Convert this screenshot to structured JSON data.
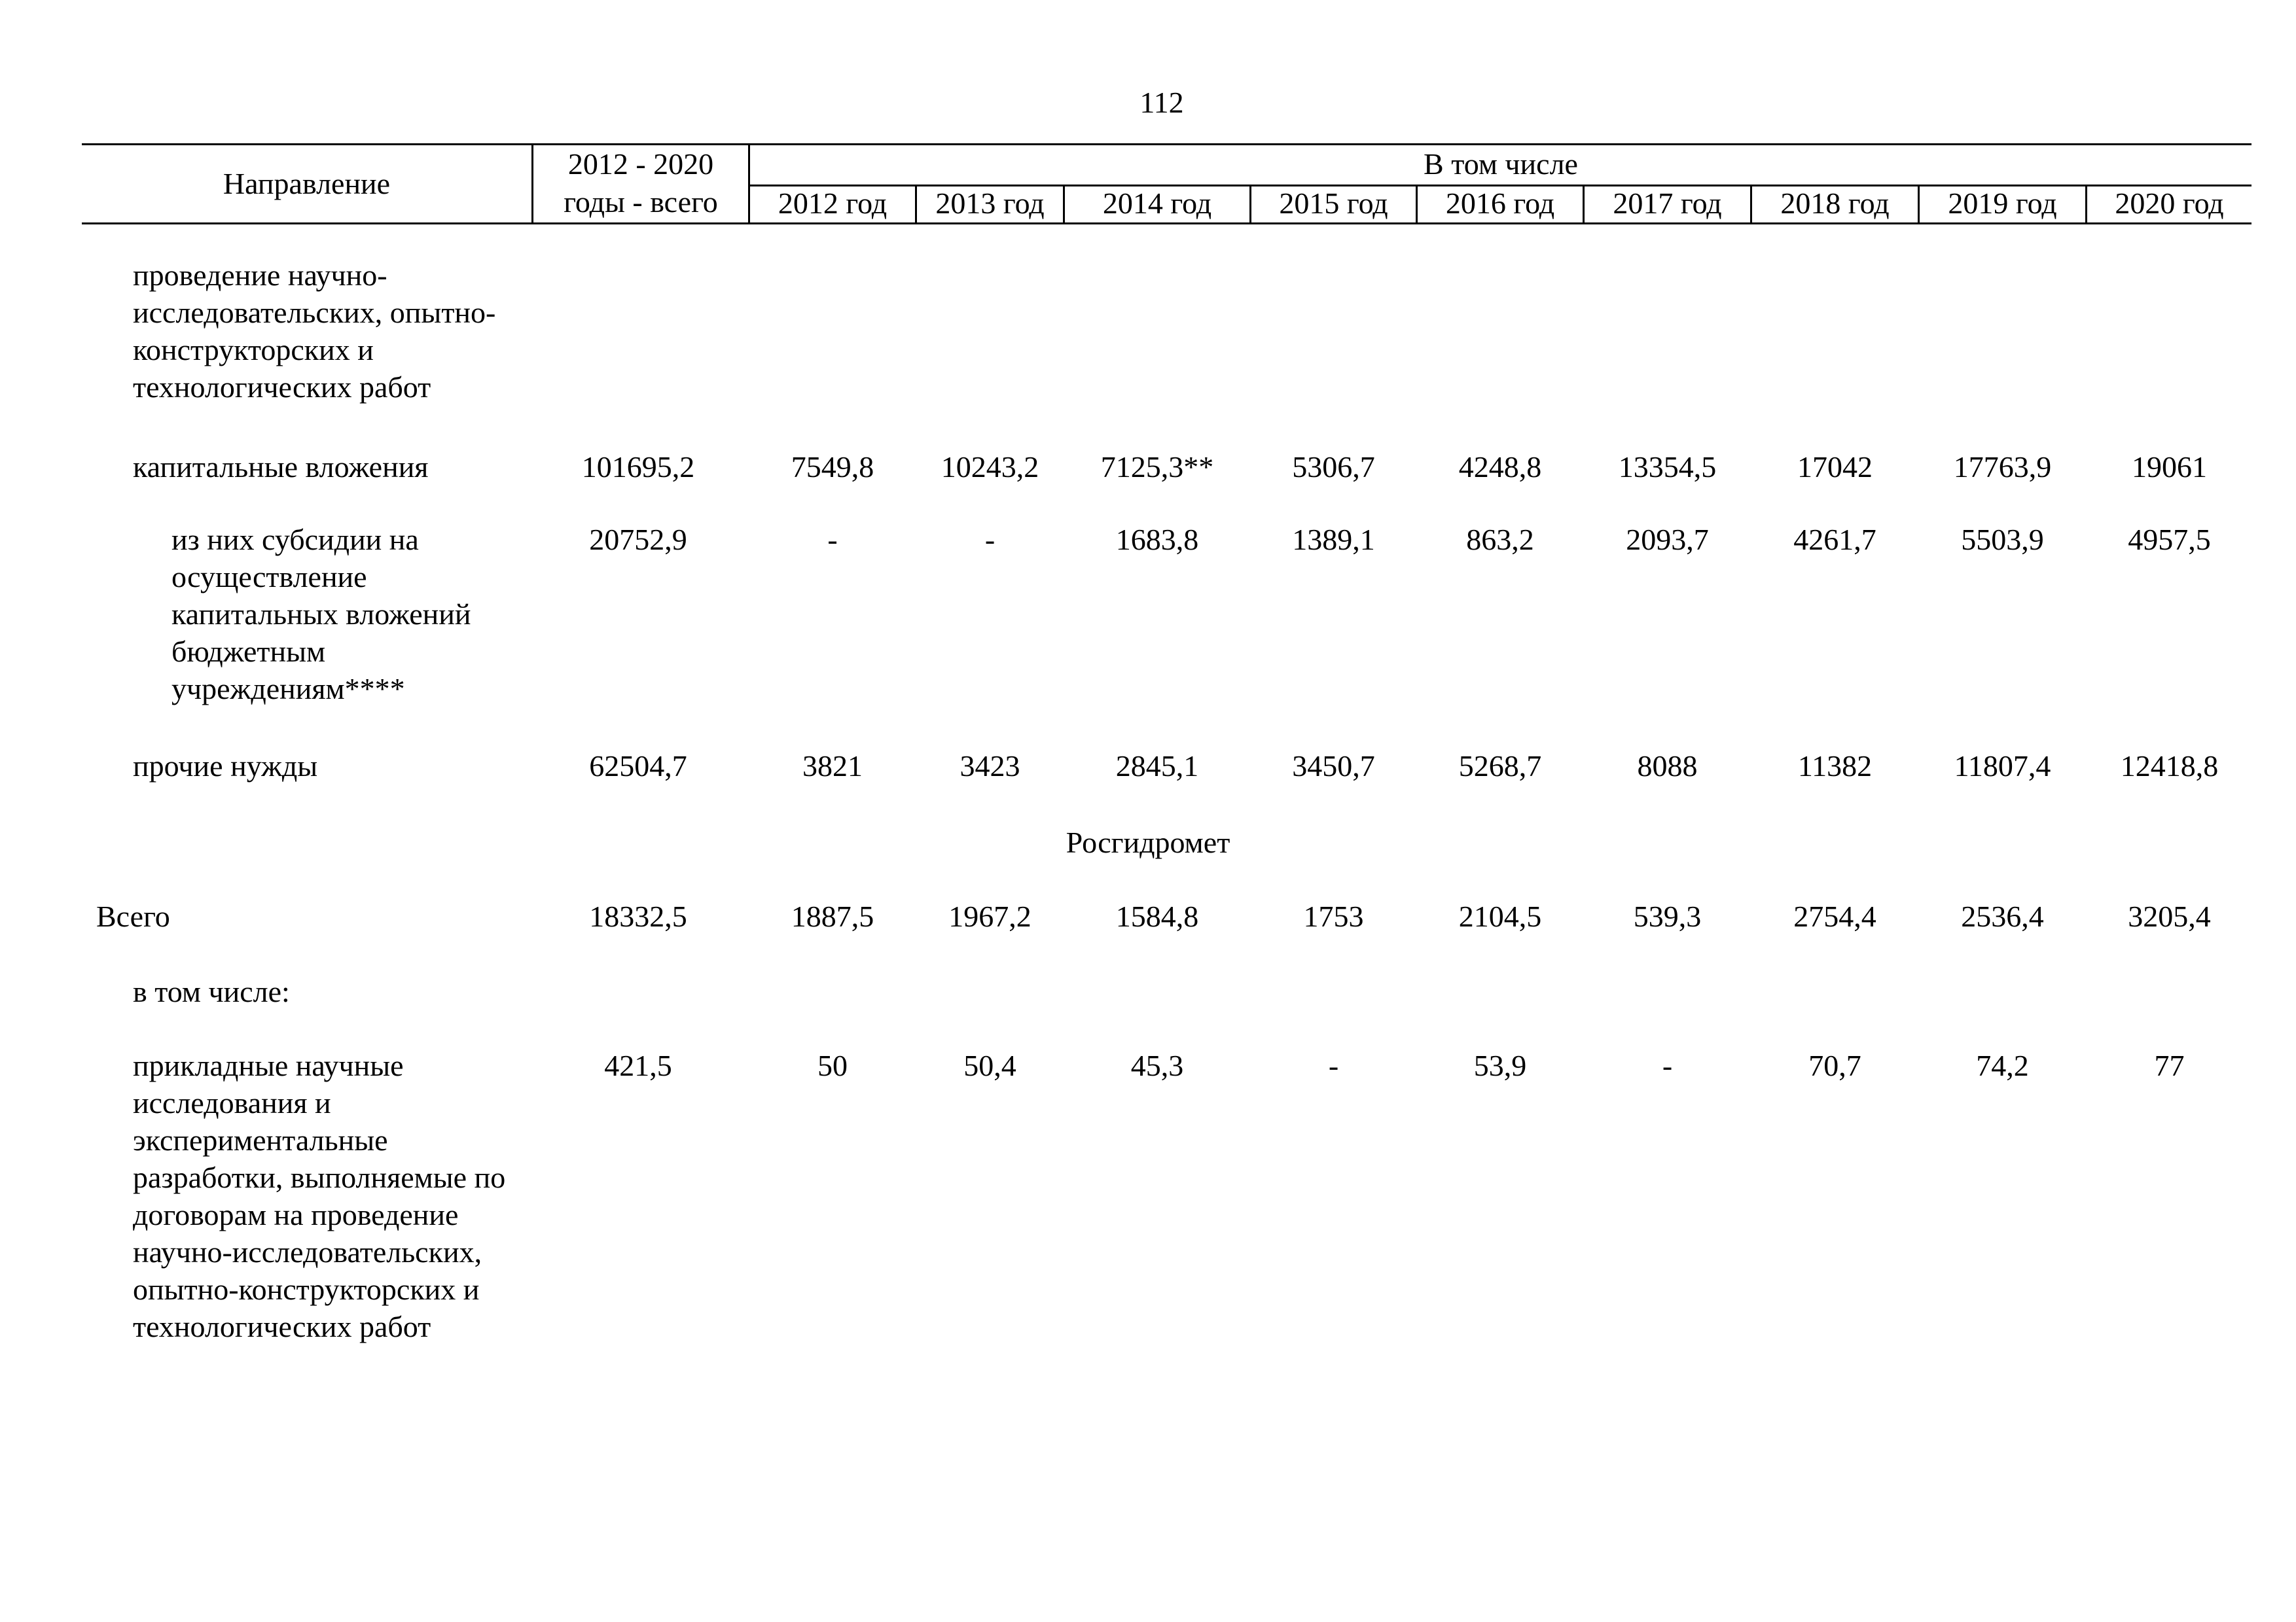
{
  "page_number": "112",
  "header": {
    "direction": "Направление",
    "total_line1": "2012 - 2020",
    "total_line2": "годы - всего",
    "including": "В том числе",
    "years": [
      "2012 год",
      "2013 год",
      "2014 год",
      "2015 год",
      "2016 год",
      "2017 год",
      "2018 год",
      "2019 год",
      "2020 год"
    ]
  },
  "rows": [
    {
      "label": "проведение научно-исследовательских, опытно-конструкторских и технологических работ",
      "total": "",
      "values": [
        "",
        "",
        "",
        "",
        "",
        "",
        "",
        "",
        ""
      ]
    },
    {
      "label": "капитальные вложения",
      "total": "101695,2",
      "values": [
        "7549,8",
        "10243,2",
        "7125,3**",
        "5306,7",
        "4248,8",
        "13354,5",
        "17042",
        "17763,9",
        "19061"
      ]
    },
    {
      "label": "из них субсидии на осуществление капитальных вложений бюджетным учреждениям****",
      "total": "20752,9",
      "values": [
        "-",
        "-",
        "1683,8",
        "1389,1",
        "863,2",
        "2093,7",
        "4261,7",
        "5503,9",
        "4957,5"
      ]
    },
    {
      "label": "прочие нужды",
      "total": "62504,7",
      "values": [
        "3821",
        "3423",
        "2845,1",
        "3450,7",
        "5268,7",
        "8088",
        "11382",
        "11807,4",
        "12418,8"
      ]
    },
    {
      "label": "Всего",
      "total": "18332,5",
      "values": [
        "1887,5",
        "1967,2",
        "1584,8",
        "1753",
        "2104,5",
        "539,3",
        "2754,4",
        "2536,4",
        "3205,4"
      ]
    },
    {
      "label": "в том числе:",
      "total": "",
      "values": [
        "",
        "",
        "",
        "",
        "",
        "",
        "",
        "",
        ""
      ]
    },
    {
      "label": "прикладные научные исследования и экспериментальные разработки, выполняемые по договорам на проведение научно-исследовательских, опытно-конструкторских и технологических работ",
      "total": "421,5",
      "values": [
        "50",
        "50,4",
        "45,3",
        "-",
        "53,9",
        "-",
        "70,7",
        "74,2",
        "77"
      ]
    }
  ],
  "section_title": "Росгидромет"
}
